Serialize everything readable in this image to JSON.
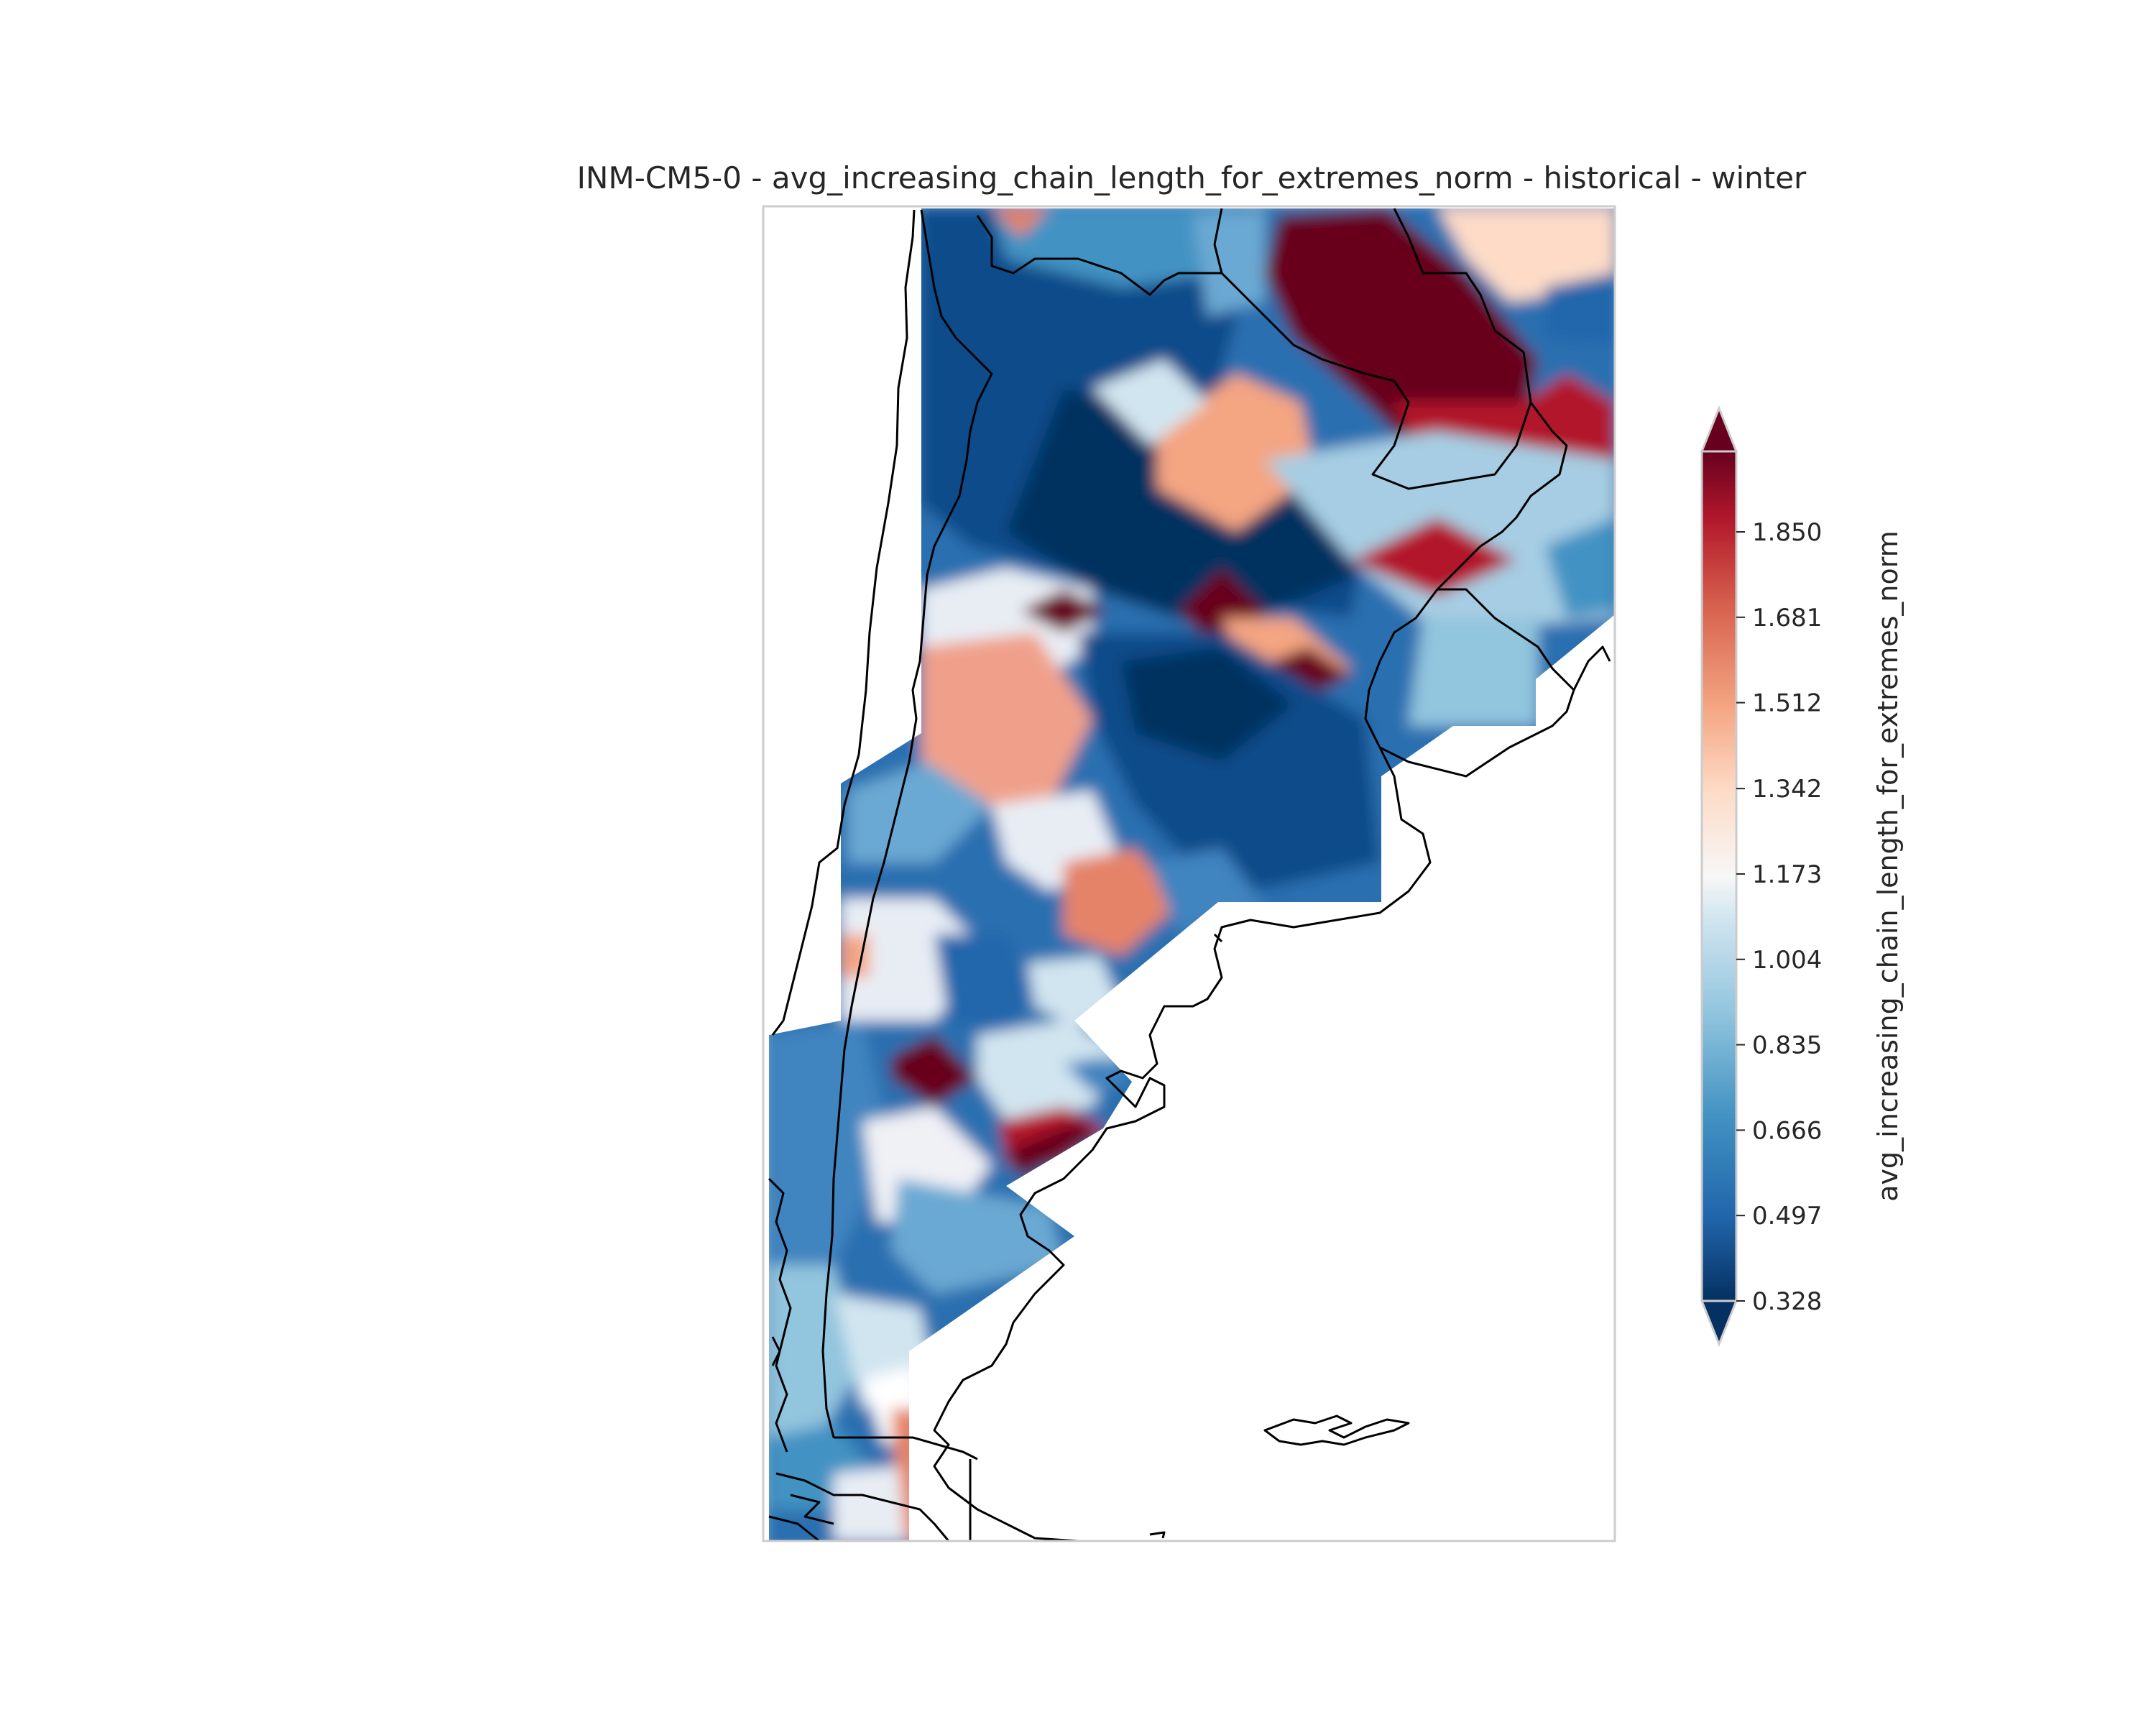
{
  "title": "INM-CM5-0 - avg_increasing_chain_length_for_extremes_norm - historical - winter",
  "colorbar": {
    "label": "avg_increasing_chain_length_for_extremes_norm",
    "colormap": "RdBu_r",
    "extend": "both",
    "ticks": [
      "0.328",
      "0.497",
      "0.666",
      "0.835",
      "1.004",
      "1.173",
      "1.342",
      "1.512",
      "1.681",
      "1.850"
    ],
    "range": [
      0.328,
      2.0
    ]
  },
  "colors": {
    "deep_red": "#67001f",
    "red": "#b2182b",
    "salmon": "#e58368",
    "light_salmon": "#f4a582",
    "near_white": "#f7f7f7",
    "light_blue": "#d1e5f0",
    "mid_blue": "#92c5de",
    "blue": "#4393c3",
    "dark_blue": "#2166ac",
    "navy": "#053061",
    "coast": "#000000"
  }
}
